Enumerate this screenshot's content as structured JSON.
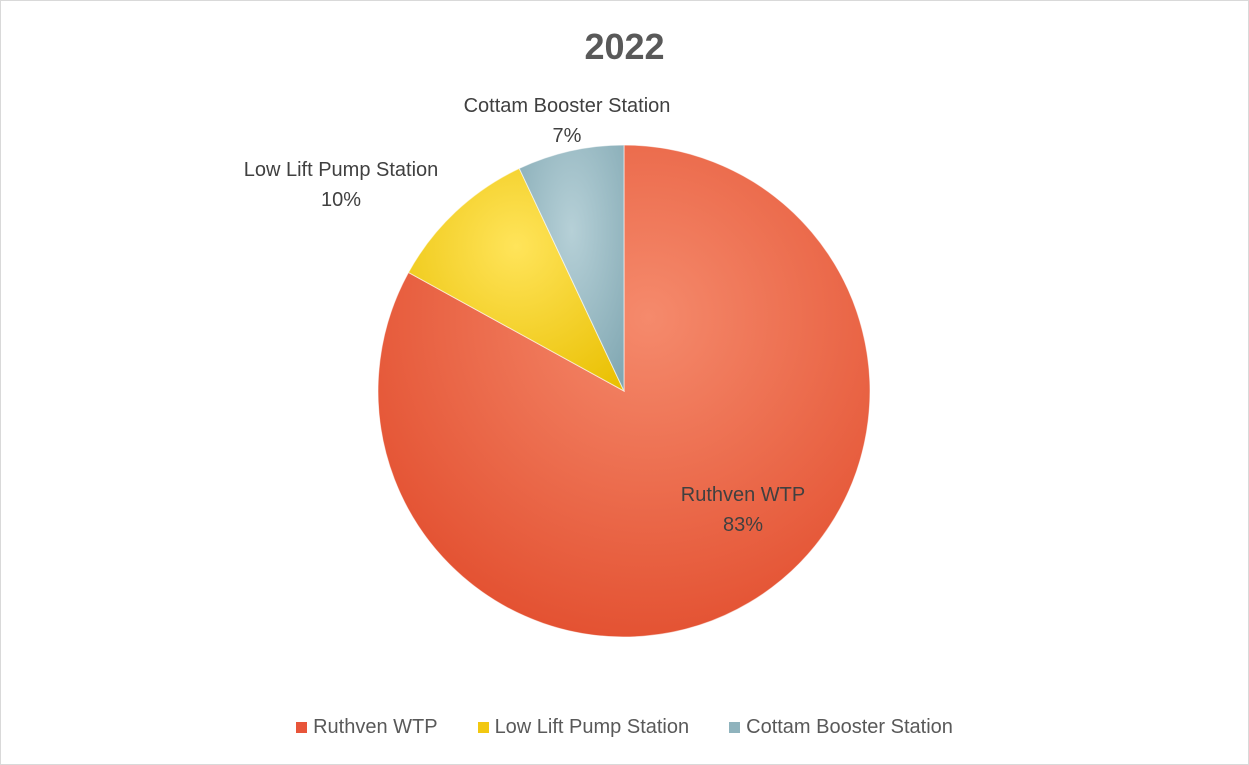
{
  "chart_data": {
    "type": "pie",
    "title": "2022",
    "slices": [
      {
        "label": "Ruthven WTP",
        "value": 83,
        "value_label": "83%",
        "color": "#e8553a"
      },
      {
        "label": "Low Lift Pump Station",
        "value": 10,
        "value_label": "10%",
        "color": "#f2c811"
      },
      {
        "label": "Cottam Booster Station",
        "value": 7,
        "value_label": "7%",
        "color": "#8fb3bd"
      }
    ],
    "legend_position": "bottom"
  }
}
